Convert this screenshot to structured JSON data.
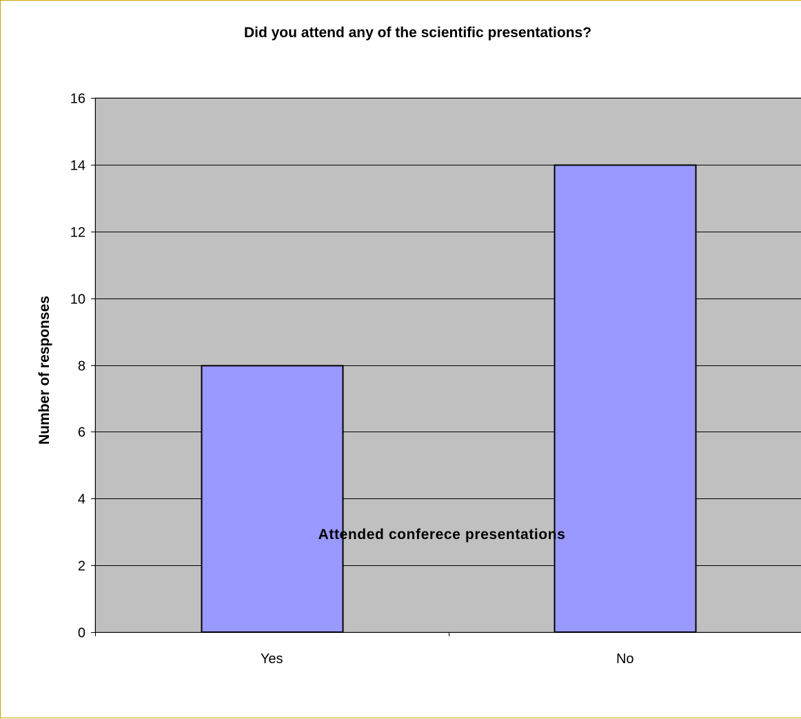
{
  "chart_data": {
    "type": "bar",
    "title": "Did you attend any of the scientific presentations?",
    "xlabel": "Attended conferece presentations",
    "ylabel": "Number of responses",
    "categories": [
      "Yes",
      "No"
    ],
    "values": [
      8,
      14
    ],
    "ylim": [
      0,
      16
    ],
    "yticks": [
      0,
      2,
      4,
      6,
      8,
      10,
      12,
      14,
      16
    ],
    "grid": true,
    "legend": "none",
    "colors": {
      "bar_fill": "#9999ff",
      "bar_stroke": "#000000",
      "plot_background": "#c0c0c0",
      "gridline": "#000000",
      "frame_border": "#c8a600"
    }
  }
}
